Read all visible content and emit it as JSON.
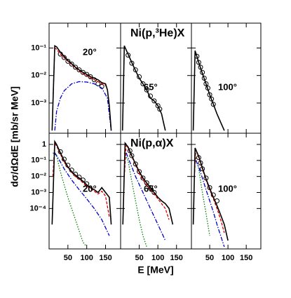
{
  "figure": {
    "xlabel": "E [MeV]",
    "ylabel": "dσ/dΩdE [mb/sr MeV]"
  },
  "chart_data": [
    {
      "type": "line",
      "annotation": "20°",
      "log_y": true,
      "xlim": [
        0,
        190
      ],
      "ylim": [
        8e-05,
        0.8
      ],
      "yticks": [
        {
          "value": 0.1,
          "label": "10⁻¹"
        },
        {
          "value": 0.01,
          "label": "10⁻²"
        },
        {
          "value": 0.001,
          "label": "10⁻³"
        }
      ],
      "series": [
        {
          "style": "markers",
          "color": "#000000",
          "x": [
            30,
            40,
            50,
            60,
            70,
            80,
            90,
            100,
            110,
            120,
            130,
            140
          ],
          "values": [
            0.06,
            0.045,
            0.033,
            0.026,
            0.02,
            0.016,
            0.013,
            0.011,
            0.009,
            0.007,
            0.005,
            0.004
          ]
        },
        {
          "style": "dashed",
          "color": "#e00000",
          "x": [
            10,
            15,
            20,
            30,
            40,
            50,
            60,
            70,
            80,
            90,
            100,
            110,
            120,
            130,
            140,
            150,
            155,
            160,
            165
          ],
          "values": [
            0.001,
            0.1,
            0.09,
            0.06,
            0.045,
            0.033,
            0.025,
            0.019,
            0.015,
            0.012,
            0.01,
            0.008,
            0.007,
            0.006,
            0.005,
            0.0045,
            0.003,
            0.0008,
            0.0001
          ]
        },
        {
          "style": "dashdot",
          "color": "#0000cc",
          "x": [
            15,
            20,
            30,
            40,
            60,
            80,
            100,
            120,
            140,
            155,
            165
          ],
          "values": [
            0.0001,
            0.0005,
            0.0015,
            0.0028,
            0.005,
            0.006,
            0.0058,
            0.005,
            0.0035,
            0.0015,
            0.0001
          ]
        },
        {
          "style": "solid",
          "color": "#000000",
          "x": [
            8,
            15,
            20,
            30,
            40,
            50,
            60,
            70,
            80,
            90,
            100,
            110,
            120,
            130,
            140,
            150,
            155,
            160,
            165
          ],
          "values": [
            0.0001,
            0.12,
            0.11,
            0.07,
            0.05,
            0.035,
            0.027,
            0.02,
            0.016,
            0.013,
            0.011,
            0.009,
            0.008,
            0.007,
            0.0055,
            0.005,
            0.003,
            0.0008,
            0.0001
          ]
        }
      ]
    },
    {
      "type": "line",
      "title": "Ni(p,³He)X",
      "annotation": "65°",
      "log_y": true,
      "xlim": [
        0,
        190
      ],
      "ylim": [
        8e-05,
        0.8
      ],
      "series": [
        {
          "style": "markers",
          "color": "#000000",
          "x": [
            20,
            30,
            40,
            50,
            60,
            70,
            80,
            90,
            100,
            105
          ],
          "values": [
            0.055,
            0.028,
            0.016,
            0.009,
            0.005,
            0.003,
            0.0018,
            0.0012,
            0.0008,
            0.0006
          ]
        },
        {
          "style": "solid",
          "color": "#000000",
          "x": [
            5,
            10,
            20,
            30,
            40,
            50,
            60,
            70,
            80,
            90,
            100,
            110,
            115,
            120
          ],
          "values": [
            0.0001,
            0.12,
            0.06,
            0.03,
            0.015,
            0.008,
            0.005,
            0.003,
            0.0015,
            0.0012,
            0.0008,
            0.0004,
            0.0002,
            0.0001
          ]
        }
      ]
    },
    {
      "type": "line",
      "annotation": "100°",
      "log_y": true,
      "xlim": [
        0,
        190
      ],
      "ylim": [
        8e-05,
        0.8
      ],
      "series": [
        {
          "style": "markers",
          "color": "#000000",
          "x": [
            15,
            20,
            25,
            30,
            35,
            40,
            45,
            50,
            55,
            60
          ],
          "values": [
            0.05,
            0.03,
            0.02,
            0.013,
            0.008,
            0.005,
            0.0035,
            0.002,
            0.0014,
            0.0009
          ]
        },
        {
          "style": "solid",
          "color": "#000000",
          "x": [
            5,
            10,
            20,
            30,
            40,
            50,
            60,
            70,
            80,
            90
          ],
          "values": [
            0.0001,
            0.08,
            0.03,
            0.012,
            0.005,
            0.002,
            0.0009,
            0.0004,
            0.0002,
            0.0001
          ]
        }
      ]
    },
    {
      "type": "line",
      "annotation": "20°",
      "log_y": true,
      "xlim": [
        0,
        190
      ],
      "ylim": [
        3e-07,
        5
      ],
      "xticks": [
        50,
        100,
        150
      ],
      "yticks": [
        {
          "value": 1,
          "label": "1"
        },
        {
          "value": 0.1,
          "label": "10⁻¹"
        },
        {
          "value": 0.01,
          "label": "10⁻²"
        },
        {
          "value": 0.001,
          "label": "10⁻³"
        },
        {
          "value": 0.0001,
          "label": "10⁻⁴"
        }
      ],
      "series": [
        {
          "style": "markers",
          "color": "#000000",
          "x": [
            30,
            40,
            50,
            60,
            70,
            80,
            90,
            100
          ],
          "values": [
            0.35,
            0.12,
            0.05,
            0.025,
            0.014,
            0.009,
            0.006,
            0.0035
          ]
        },
        {
          "style": "dotted",
          "color": "#008000",
          "x": [
            10,
            20,
            30,
            40,
            50,
            60,
            70,
            80,
            90,
            100
          ],
          "values": [
            0.3,
            0.2,
            0.02,
            0.003,
            0.0005,
            0.0001,
            2e-05,
            4e-06,
            8e-07,
            4e-07
          ]
        },
        {
          "style": "dashdot",
          "color": "#0000cc",
          "x": [
            15,
            20,
            30,
            40,
            60,
            80,
            100,
            120,
            140,
            160
          ],
          "values": [
            0.3,
            0.2,
            0.08,
            0.03,
            0.006,
            0.0015,
            0.0004,
            0.0001,
            2e-05,
            2e-06
          ]
        },
        {
          "style": "dashed",
          "color": "#e00000",
          "x": [
            10,
            15,
            20,
            30,
            40,
            50,
            60,
            70,
            80,
            90,
            100,
            110,
            120,
            130,
            140,
            150,
            160
          ],
          "values": [
            0.01,
            1.2,
            0.8,
            0.25,
            0.08,
            0.035,
            0.018,
            0.01,
            0.007,
            0.004,
            0.0025,
            0.0018,
            0.0012,
            0.0008,
            0.0012,
            0.0006,
            3e-05
          ]
        },
        {
          "style": "solid",
          "color": "#000000",
          "x": [
            8,
            15,
            20,
            30,
            40,
            50,
            60,
            70,
            80,
            90,
            100,
            110,
            120,
            130,
            140,
            150,
            160,
            165
          ],
          "values": [
            1e-05,
            1.5,
            1.0,
            0.3,
            0.1,
            0.04,
            0.02,
            0.012,
            0.008,
            0.005,
            0.003,
            0.002,
            0.0015,
            0.001,
            0.002,
            0.001,
            0.0005,
            1e-05
          ]
        }
      ]
    },
    {
      "type": "line",
      "title": "Ni(p,α)X",
      "annotation": "65°",
      "log_y": true,
      "xlim": [
        0,
        190
      ],
      "ylim": [
        3e-07,
        5
      ],
      "xticks": [
        50,
        100,
        150
      ],
      "series": [
        {
          "style": "markers",
          "color": "#000000",
          "x": [
            25,
            30,
            40,
            50,
            60,
            70,
            80,
            90
          ],
          "values": [
            0.4,
            0.2,
            0.06,
            0.02,
            0.008,
            0.004,
            0.002,
            0.001
          ]
        },
        {
          "style": "dotted",
          "color": "#008000",
          "x": [
            10,
            20,
            30,
            40,
            50,
            60,
            70
          ],
          "values": [
            0.3,
            0.1,
            0.005,
            0.0003,
            2e-05,
            2e-06,
            4e-07
          ]
        },
        {
          "style": "dashdot",
          "color": "#0000cc",
          "x": [
            15,
            20,
            30,
            40,
            60,
            80,
            100,
            120
          ],
          "values": [
            0.3,
            0.15,
            0.04,
            0.01,
            0.001,
            0.0001,
            1e-05,
            1e-06
          ]
        },
        {
          "style": "dashed",
          "color": "#e00000",
          "x": [
            10,
            15,
            20,
            30,
            40,
            50,
            60,
            70,
            80,
            90,
            100,
            110,
            120,
            130
          ],
          "values": [
            0.01,
            1.0,
            0.6,
            0.18,
            0.05,
            0.015,
            0.006,
            0.003,
            0.0015,
            0.0008,
            0.0004,
            0.0002,
            0.0001,
            2e-05
          ]
        },
        {
          "style": "solid",
          "color": "#000000",
          "x": [
            6,
            12,
            20,
            30,
            40,
            50,
            60,
            70,
            80,
            90,
            100,
            110,
            120,
            130,
            140
          ],
          "values": [
            1e-05,
            1.2,
            0.7,
            0.2,
            0.06,
            0.02,
            0.008,
            0.004,
            0.002,
            0.001,
            0.0005,
            0.0003,
            0.0002,
            0.0001,
            1e-05
          ]
        }
      ]
    },
    {
      "type": "line",
      "annotation": "100°",
      "log_y": true,
      "xlim": [
        0,
        190
      ],
      "ylim": [
        3e-07,
        5
      ],
      "xticks": [
        50,
        100,
        150
      ],
      "series": [
        {
          "style": "markers",
          "color": "#000000",
          "x": [
            20,
            25,
            30,
            40,
            50,
            60,
            70
          ],
          "values": [
            0.15,
            0.07,
            0.03,
            0.008,
            0.002,
            0.0007,
            0.0003
          ]
        },
        {
          "style": "dotted",
          "color": "#008000",
          "x": [
            10,
            20,
            30,
            40,
            50
          ],
          "values": [
            0.2,
            0.03,
            0.001,
            5e-05,
            2e-06
          ]
        },
        {
          "style": "dashdot",
          "color": "#0000cc",
          "x": [
            12,
            20,
            30,
            40,
            50,
            60,
            70,
            80,
            90
          ],
          "values": [
            0.1,
            0.04,
            0.008,
            0.0015,
            0.0003,
            6e-05,
            1e-05,
            2e-06,
            4e-07
          ]
        },
        {
          "style": "dashed",
          "color": "#e00000",
          "x": [
            8,
            12,
            20,
            30,
            40,
            50,
            60,
            70,
            80,
            90
          ],
          "values": [
            0.01,
            0.5,
            0.15,
            0.03,
            0.006,
            0.0015,
            0.0004,
            0.0001,
            2e-05,
            3e-06
          ]
        },
        {
          "style": "solid",
          "color": "#000000",
          "x": [
            5,
            10,
            20,
            30,
            40,
            50,
            60,
            70,
            80,
            90,
            100
          ],
          "values": [
            1e-05,
            0.6,
            0.18,
            0.035,
            0.007,
            0.0018,
            0.0005,
            0.00015,
            4e-05,
            1e-05,
            1e-06
          ]
        }
      ]
    }
  ]
}
